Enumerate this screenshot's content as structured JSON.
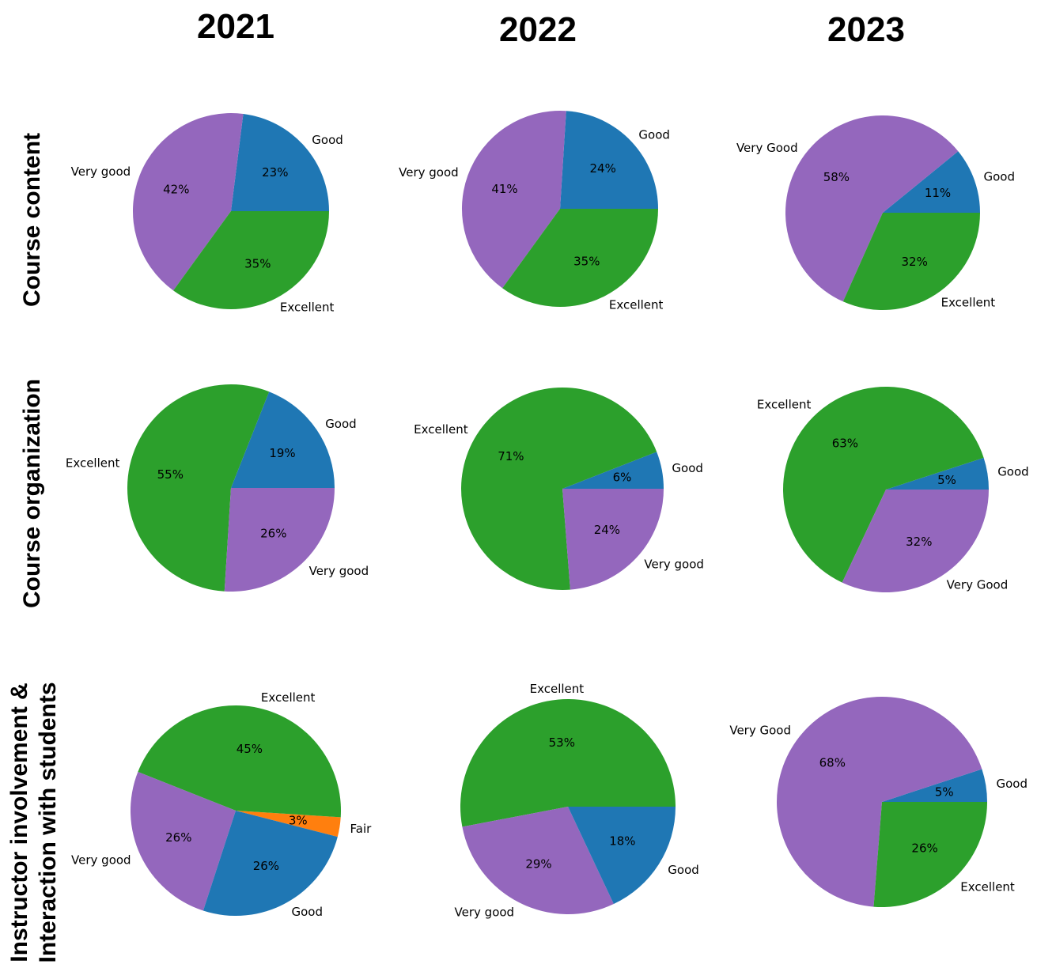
{
  "colors": {
    "Excellent": "#2ca02c",
    "Very good": "#9467bd",
    "Very Good": "#9467bd",
    "Good": "#1f77b4",
    "Fair": "#ff7f0e"
  },
  "columns": [
    "2021",
    "2022",
    "2023"
  ],
  "rows": [
    "Course content",
    "Course organization",
    "Instructor involvement &",
    "Interaction with students"
  ],
  "chart_data": [
    {
      "type": "pie",
      "title": "2021",
      "row": "Course content",
      "slices": [
        {
          "label": "Good",
          "value": 23,
          "text": "23%"
        },
        {
          "label": "Very good",
          "value": 42,
          "text": "42%"
        },
        {
          "label": "Excellent",
          "value": 35,
          "text": "35%"
        }
      ]
    },
    {
      "type": "pie",
      "title": "2022",
      "row": "Course content",
      "slices": [
        {
          "label": "Good",
          "value": 24,
          "text": "24%"
        },
        {
          "label": "Very good",
          "value": 41,
          "text": "41%"
        },
        {
          "label": "Excellent",
          "value": 35,
          "text": "35%"
        }
      ]
    },
    {
      "type": "pie",
      "title": "2023",
      "row": "Course content",
      "slices": [
        {
          "label": "Good",
          "value": 11,
          "text": "11%"
        },
        {
          "label": "Very Good",
          "value": 58,
          "text": "58%"
        },
        {
          "label": "Excellent",
          "value": 32,
          "text": "32%"
        }
      ]
    },
    {
      "type": "pie",
      "title": "2021",
      "row": "Course organization",
      "slices": [
        {
          "label": "Good",
          "value": 19,
          "text": "19%"
        },
        {
          "label": "Excellent",
          "value": 55,
          "text": "55%"
        },
        {
          "label": "Very good",
          "value": 26,
          "text": "26%"
        }
      ]
    },
    {
      "type": "pie",
      "title": "2022",
      "row": "Course organization",
      "slices": [
        {
          "label": "Good",
          "value": 6,
          "text": "6%"
        },
        {
          "label": "Excellent",
          "value": 71,
          "text": "71%"
        },
        {
          "label": "Very good",
          "value": 24,
          "text": "24%"
        }
      ]
    },
    {
      "type": "pie",
      "title": "2023",
      "row": "Course organization",
      "slices": [
        {
          "label": "Good",
          "value": 5,
          "text": "5%"
        },
        {
          "label": "Excellent",
          "value": 63,
          "text": "63%"
        },
        {
          "label": "Very Good",
          "value": 32,
          "text": "32%"
        }
      ]
    },
    {
      "type": "pie",
      "title": "2021",
      "row": "Instructor involvement & Interaction with students",
      "slices": [
        {
          "label": "Fair",
          "value": 3,
          "text": "3%"
        },
        {
          "label": "Excellent",
          "value": 45,
          "text": "45%"
        },
        {
          "label": "Very good",
          "value": 26,
          "text": "26%"
        },
        {
          "label": "Good",
          "value": 26,
          "text": "26%"
        }
      ]
    },
    {
      "type": "pie",
      "title": "2022",
      "row": "Instructor involvement & Interaction with students",
      "slices": [
        {
          "label": "Excellent",
          "value": 53,
          "text": "53%"
        },
        {
          "label": "Very good",
          "value": 29,
          "text": "29%"
        },
        {
          "label": "Good",
          "value": 18,
          "text": "18%"
        }
      ]
    },
    {
      "type": "pie",
      "title": "2023",
      "row": "Instructor involvement & Interaction with students",
      "slices": [
        {
          "label": "Good",
          "value": 5,
          "text": "5%"
        },
        {
          "label": "Very Good",
          "value": 68,
          "text": "68%"
        },
        {
          "label": "Excellent",
          "value": 26,
          "text": "26%"
        }
      ]
    }
  ]
}
